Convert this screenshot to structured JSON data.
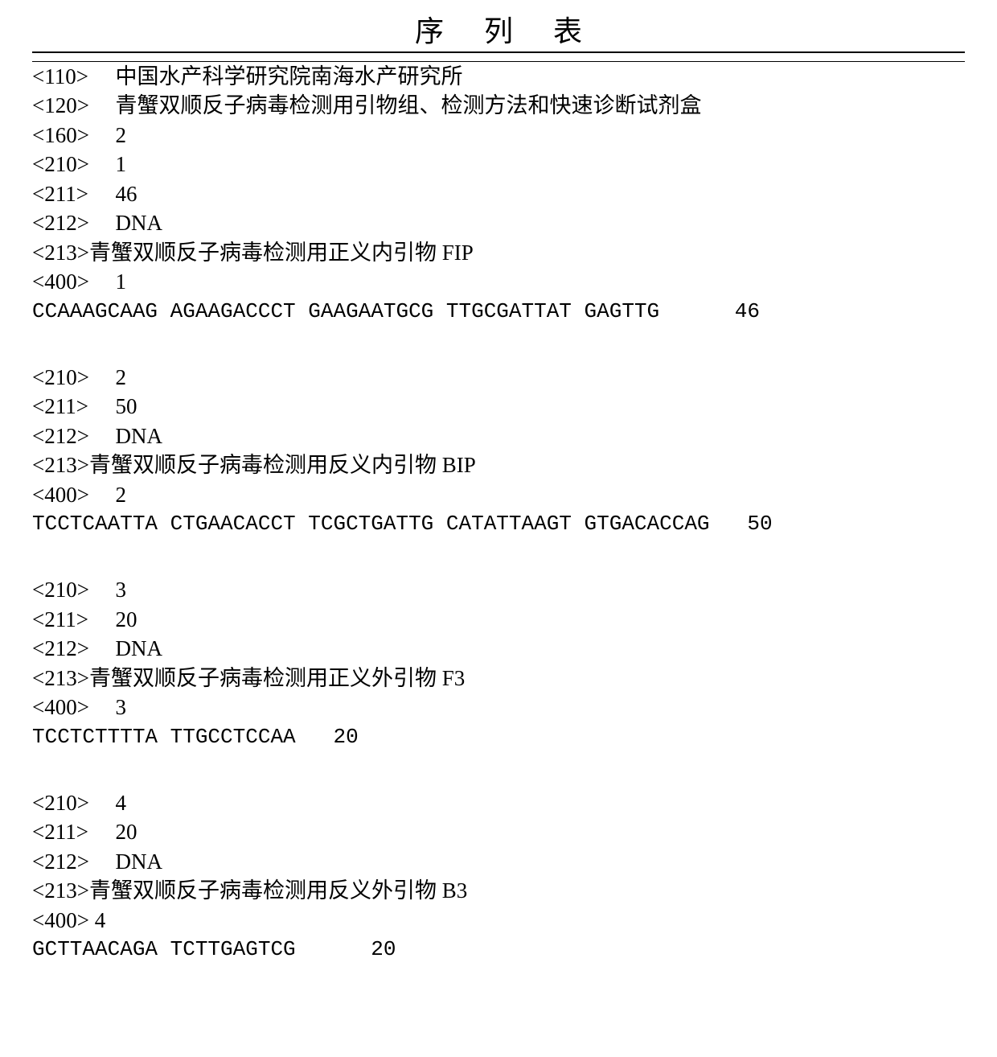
{
  "header": {
    "title": "序列表"
  },
  "main_info": {
    "tag_110": "<110>",
    "val_110": "中国水产科学研究院南海水产研究所",
    "tag_120": "<120>",
    "val_120": "青蟹双顺反子病毒检测用引物组、检测方法和快速诊断试剂盒",
    "tag_160": "<160>",
    "val_160": "2"
  },
  "seq1": {
    "tag_210": "<210>",
    "val_210": "1",
    "tag_211": "<211>",
    "val_211": "46",
    "tag_212": "<212>",
    "val_212": "DNA",
    "tag_213": "<213>",
    "val_213_prefix": "青蟹双顺反子病毒检测用正义内引物",
    "val_213_suffix": " FIP",
    "tag_400": "<400>",
    "val_400": "1",
    "sequence": "CCAAAGCAAG AGAAGACCCT GAAGAATGCG TTGCGATTAT GAGTTG      46"
  },
  "seq2": {
    "tag_210": "<210>",
    "val_210": "2",
    "tag_211": "<211>",
    "val_211": "50",
    "tag_212": "<212>",
    "val_212": "DNA",
    "tag_213": "<213>",
    "val_213_prefix": "青蟹双顺反子病毒检测用反义内引物",
    "val_213_suffix": " BIP",
    "tag_400": "<400>",
    "val_400": "2",
    "sequence": "TCCTCAATTA CTGAACACCT TCGCTGATTG CATATTAAGT GTGACACCAG   50"
  },
  "seq3": {
    "tag_210": "<210>",
    "val_210": "3",
    "tag_211": "<211>",
    "val_211": "20",
    "tag_212": "<212>",
    "val_212": "DNA",
    "tag_213": "<213>",
    "val_213_prefix": "青蟹双顺反子病毒检测用正义外引物",
    "val_213_suffix": " F3",
    "tag_400": "<400>",
    "val_400": "3",
    "sequence": "TCCTCTTTTA TTGCCTCCAA   20"
  },
  "seq4": {
    "tag_210": "<210>",
    "val_210": "4",
    "tag_211": "<211>",
    "val_211": "20",
    "tag_212": "<212>",
    "val_212": "DNA",
    "tag_213": "<213>",
    "val_213_prefix": "青蟹双顺反子病毒检测用反义外引物",
    "val_213_suffix": " B3",
    "tag_400": "<400>",
    "val_400_nospace": "4",
    "sequence": "GCTTAACAGA TCTTGAGTCG      20"
  },
  "styling": {
    "background_color": "#ffffff",
    "text_color": "#000000",
    "title_fontsize": 36,
    "body_fontsize": 27,
    "sequence_fontsize": 26,
    "title_letter_spacing": 50
  }
}
